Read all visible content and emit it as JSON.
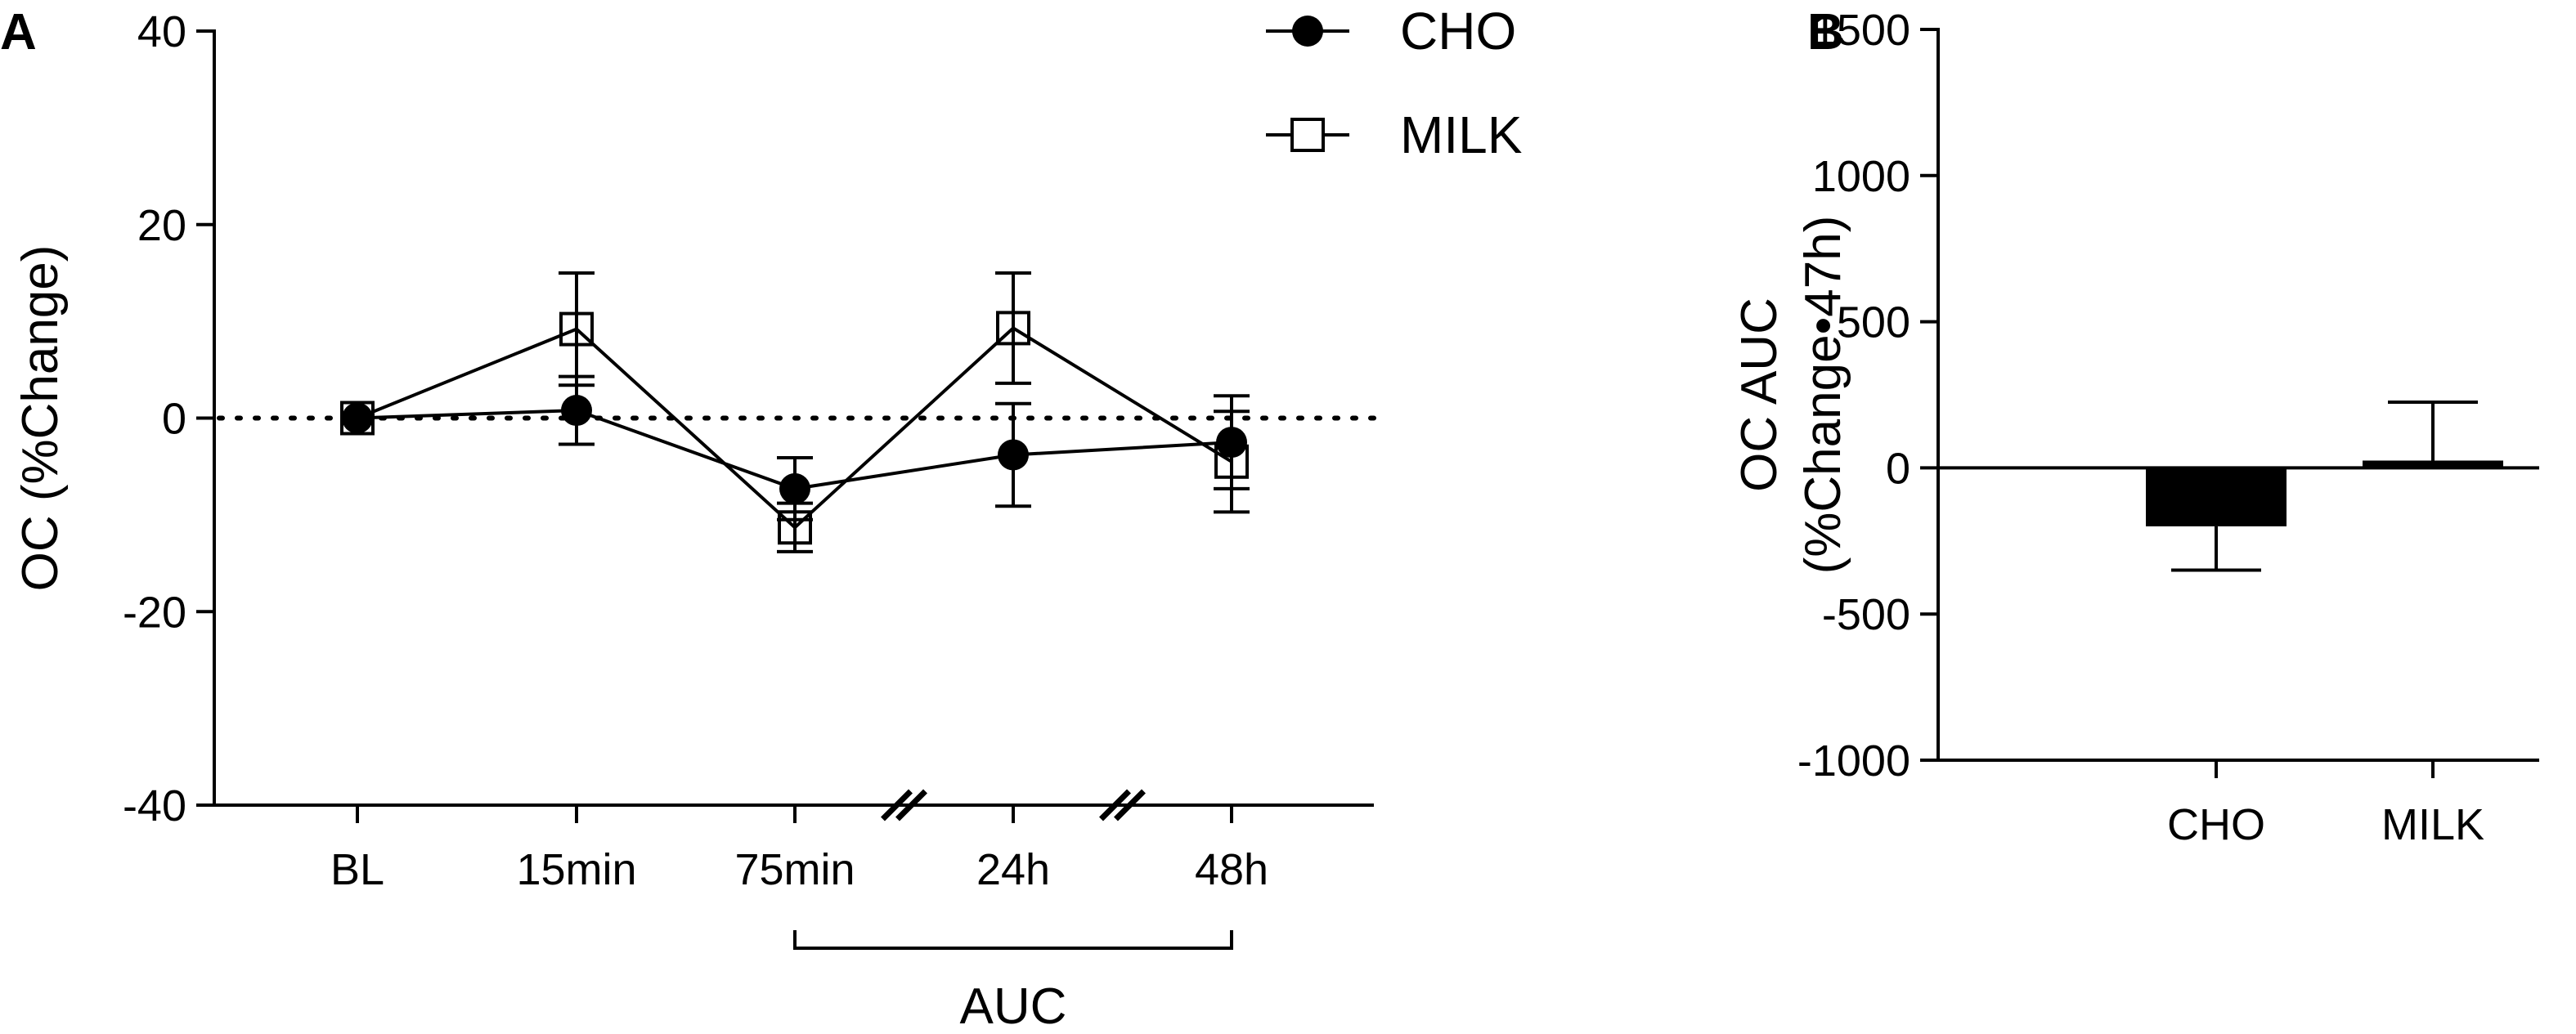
{
  "panels": {
    "a_label": "A",
    "b_label": "B"
  },
  "chart_data": [
    {
      "type": "line",
      "ylabel": "OC (%Change)",
      "ylim": [
        -40,
        40
      ],
      "yticks": [
        40,
        20,
        0,
        -20,
        -40
      ],
      "categories": [
        "BL",
        "15min",
        "75min",
        "24h",
        "48h"
      ],
      "reference_line": 0,
      "axis_breaks_after": [
        "75min",
        "24h"
      ],
      "bracket": {
        "label": "AUC",
        "from": "75min",
        "to": "48h"
      },
      "legend_position": "top-right",
      "series": [
        {
          "name": "CHO",
          "marker": "filled-circle",
          "values": [
            0,
            0.8,
            -7.3,
            -3.8,
            -2.5
          ],
          "error": [
            0.3,
            3.5,
            3.2,
            5.3,
            4.8
          ]
        },
        {
          "name": "MILK",
          "marker": "open-square",
          "values": [
            0,
            9.2,
            -11.3,
            9.3,
            -4.5
          ],
          "error": [
            0.3,
            5.8,
            2.5,
            5.7,
            5.2
          ]
        }
      ]
    },
    {
      "type": "bar",
      "ylabel_line1": "OC AUC",
      "ylabel_line2": "(%Change•47h)",
      "ylim": [
        -1000,
        1500
      ],
      "yticks": [
        1500,
        1000,
        500,
        0,
        -500,
        -1000
      ],
      "categories": [
        "CHO",
        "MILK"
      ],
      "values": [
        -200,
        25
      ],
      "error": [
        150,
        200
      ],
      "bar_fill": [
        "#000000",
        "#000000"
      ]
    }
  ]
}
